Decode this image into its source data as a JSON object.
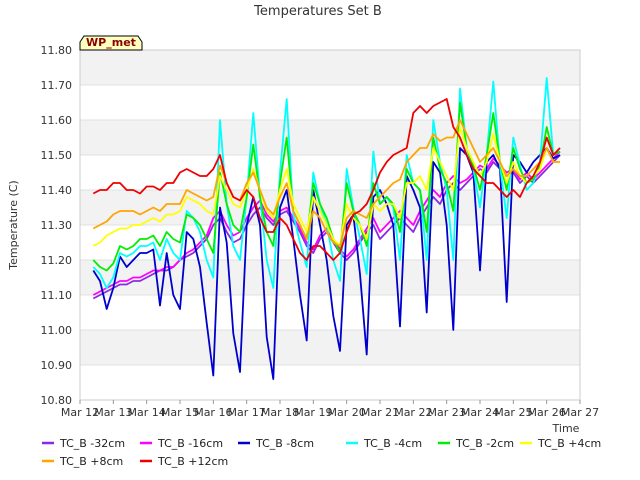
{
  "chart_data": {
    "type": "line",
    "title": "Temperatures Set B",
    "xlabel": "Time",
    "ylabel": "Temperature (C)",
    "badge": "WP_met",
    "xlim": [
      12,
      27
    ],
    "ylim": [
      10.8,
      11.8
    ],
    "grid": "horizontal bands",
    "legend_position": "bottom",
    "x_ticks": [
      "Mar 12",
      "Mar 13",
      "Mar 14",
      "Mar 15",
      "Mar 16",
      "Mar 17",
      "Mar 18",
      "Mar 19",
      "Mar 20",
      "Mar 21",
      "Mar 22",
      "Mar 23",
      "Mar 24",
      "Mar 25",
      "Mar 26",
      "Mar 27"
    ],
    "y_ticks": [
      "10.80",
      "10.90",
      "11.00",
      "11.10",
      "11.20",
      "11.30",
      "11.40",
      "11.50",
      "11.60",
      "11.70",
      "11.80"
    ],
    "x": [
      12.4,
      12.6,
      12.8,
      13.0,
      13.2,
      13.4,
      13.6,
      13.8,
      14.0,
      14.2,
      14.4,
      14.6,
      14.8,
      15.0,
      15.2,
      15.4,
      15.6,
      15.8,
      16.0,
      16.2,
      16.4,
      16.6,
      16.8,
      17.0,
      17.2,
      17.4,
      17.6,
      17.8,
      18.0,
      18.2,
      18.4,
      18.6,
      18.8,
      19.0,
      19.2,
      19.4,
      19.6,
      19.8,
      20.0,
      20.2,
      20.4,
      20.6,
      20.8,
      21.0,
      21.2,
      21.4,
      21.6,
      21.8,
      22.0,
      22.2,
      22.4,
      22.6,
      22.8,
      23.0,
      23.2,
      23.4,
      23.6,
      23.8,
      24.0,
      24.2,
      24.4,
      24.6,
      24.8,
      25.0,
      25.2,
      25.4,
      25.6,
      25.8,
      26.0,
      26.2,
      26.4
    ],
    "series": [
      {
        "name": "TC_B -32cm",
        "color": "#8a2be2",
        "values": [
          11.09,
          11.1,
          11.11,
          11.12,
          11.13,
          11.13,
          11.14,
          11.14,
          11.15,
          11.16,
          11.17,
          11.17,
          11.18,
          11.2,
          11.21,
          11.22,
          11.24,
          11.26,
          11.3,
          11.32,
          11.28,
          11.25,
          11.26,
          11.3,
          11.33,
          11.35,
          11.32,
          11.3,
          11.33,
          11.34,
          11.31,
          11.28,
          11.24,
          11.22,
          11.26,
          11.28,
          11.25,
          11.22,
          11.2,
          11.22,
          11.25,
          11.28,
          11.3,
          11.26,
          11.28,
          11.3,
          11.32,
          11.3,
          11.28,
          11.32,
          11.35,
          11.38,
          11.36,
          11.4,
          11.42,
          11.4,
          11.42,
          11.44,
          11.46,
          11.45,
          11.48,
          11.46,
          11.44,
          11.45,
          11.42,
          11.44,
          11.42,
          11.44,
          11.46,
          11.48,
          11.5
        ]
      },
      {
        "name": "TC_B -16cm",
        "color": "#ff00ff",
        "values": [
          11.1,
          11.11,
          11.12,
          11.13,
          11.14,
          11.14,
          11.15,
          11.15,
          11.16,
          11.17,
          11.17,
          11.18,
          11.18,
          11.2,
          11.22,
          11.23,
          11.25,
          11.27,
          11.32,
          11.34,
          11.3,
          11.27,
          11.28,
          11.32,
          11.35,
          11.37,
          11.33,
          11.31,
          11.34,
          11.35,
          11.32,
          11.29,
          11.25,
          11.23,
          11.27,
          11.29,
          11.26,
          11.23,
          11.21,
          11.23,
          11.26,
          11.29,
          11.32,
          11.28,
          11.3,
          11.32,
          11.34,
          11.32,
          11.3,
          11.34,
          11.37,
          11.4,
          11.38,
          11.42,
          11.44,
          11.42,
          11.43,
          11.45,
          11.47,
          11.46,
          11.49,
          11.47,
          11.45,
          11.46,
          11.43,
          11.45,
          11.43,
          11.45,
          11.47,
          11.49,
          11.51
        ]
      },
      {
        "name": "TC_B -8cm",
        "color": "#0000cd",
        "values": [
          11.17,
          11.14,
          11.06,
          11.12,
          11.21,
          11.18,
          11.2,
          11.22,
          11.22,
          11.23,
          11.07,
          11.22,
          11.1,
          11.06,
          11.28,
          11.26,
          11.18,
          11.02,
          10.87,
          11.35,
          11.25,
          10.99,
          10.88,
          11.3,
          11.38,
          11.3,
          10.98,
          10.86,
          11.35,
          11.4,
          11.26,
          11.1,
          10.97,
          11.4,
          11.3,
          11.2,
          11.04,
          10.94,
          11.3,
          11.33,
          11.16,
          10.93,
          11.38,
          11.4,
          11.36,
          11.3,
          11.01,
          11.44,
          11.4,
          11.35,
          11.05,
          11.48,
          11.45,
          11.3,
          11.0,
          11.52,
          11.5,
          11.45,
          11.17,
          11.48,
          11.5,
          11.46,
          11.08,
          11.5,
          11.48,
          11.45,
          11.48,
          11.5,
          11.52,
          11.49,
          11.5
        ]
      },
      {
        "name": "TC_B -4cm",
        "color": "#00ffff",
        "values": [
          11.18,
          11.16,
          11.12,
          11.15,
          11.22,
          11.21,
          11.22,
          11.24,
          11.24,
          11.25,
          11.2,
          11.26,
          11.22,
          11.2,
          11.34,
          11.32,
          11.28,
          11.2,
          11.15,
          11.6,
          11.36,
          11.24,
          11.2,
          11.38,
          11.62,
          11.38,
          11.2,
          11.12,
          11.45,
          11.66,
          11.33,
          11.25,
          11.18,
          11.45,
          11.36,
          11.3,
          11.2,
          11.14,
          11.46,
          11.35,
          11.26,
          11.16,
          11.51,
          11.36,
          11.38,
          11.35,
          11.2,
          11.5,
          11.42,
          11.4,
          11.2,
          11.6,
          11.48,
          11.4,
          11.2,
          11.69,
          11.52,
          11.46,
          11.35,
          11.5,
          11.71,
          11.47,
          11.32,
          11.55,
          11.47,
          11.4,
          11.42,
          11.48,
          11.72,
          11.5,
          11.52
        ]
      },
      {
        "name": "TC_B -2cm",
        "color": "#00ee00",
        "values": [
          11.2,
          11.18,
          11.17,
          11.19,
          11.24,
          11.23,
          11.24,
          11.26,
          11.26,
          11.27,
          11.24,
          11.28,
          11.26,
          11.25,
          11.33,
          11.32,
          11.3,
          11.26,
          11.22,
          11.45,
          11.36,
          11.3,
          11.28,
          11.38,
          11.53,
          11.38,
          11.28,
          11.24,
          11.42,
          11.55,
          11.34,
          11.3,
          11.26,
          11.42,
          11.36,
          11.32,
          11.26,
          11.22,
          11.42,
          11.34,
          11.3,
          11.24,
          11.42,
          11.36,
          11.38,
          11.36,
          11.28,
          11.46,
          11.42,
          11.4,
          11.28,
          11.55,
          11.46,
          11.42,
          11.34,
          11.65,
          11.52,
          11.47,
          11.4,
          11.5,
          11.62,
          11.48,
          11.4,
          11.52,
          11.46,
          11.42,
          11.43,
          11.47,
          11.58,
          11.5,
          11.51
        ]
      },
      {
        "name": "TC_B +4cm",
        "color": "#ffff00",
        "values": [
          11.24,
          11.25,
          11.27,
          11.28,
          11.29,
          11.29,
          11.3,
          11.3,
          11.31,
          11.32,
          11.31,
          11.33,
          11.33,
          11.34,
          11.38,
          11.37,
          11.36,
          11.34,
          11.33,
          11.44,
          11.4,
          11.36,
          11.35,
          11.4,
          11.46,
          11.4,
          11.34,
          11.32,
          11.4,
          11.46,
          11.36,
          11.32,
          11.28,
          11.38,
          11.34,
          11.3,
          11.26,
          11.24,
          11.36,
          11.32,
          11.3,
          11.26,
          11.36,
          11.34,
          11.36,
          11.36,
          11.32,
          11.42,
          11.42,
          11.44,
          11.4,
          11.52,
          11.48,
          11.44,
          11.4,
          11.58,
          11.52,
          11.48,
          11.44,
          11.48,
          11.56,
          11.48,
          11.42,
          11.48,
          11.44,
          11.42,
          11.44,
          11.46,
          11.52,
          11.48,
          11.48
        ]
      },
      {
        "name": "TC_B +8cm",
        "color": "#ffa500",
        "values": [
          11.29,
          11.3,
          11.31,
          11.33,
          11.34,
          11.34,
          11.34,
          11.33,
          11.34,
          11.35,
          11.34,
          11.36,
          11.36,
          11.36,
          11.4,
          11.39,
          11.38,
          11.37,
          11.38,
          11.47,
          11.42,
          11.38,
          11.37,
          11.42,
          11.45,
          11.4,
          11.35,
          11.33,
          11.38,
          11.42,
          11.34,
          11.3,
          11.26,
          11.34,
          11.32,
          11.28,
          11.25,
          11.24,
          11.32,
          11.34,
          11.33,
          11.32,
          11.36,
          11.38,
          11.4,
          11.42,
          11.43,
          11.48,
          11.5,
          11.52,
          11.52,
          11.56,
          11.54,
          11.55,
          11.55,
          11.6,
          11.56,
          11.52,
          11.48,
          11.5,
          11.52,
          11.48,
          11.44,
          11.46,
          11.44,
          11.44,
          11.46,
          11.48,
          11.52,
          11.48,
          11.48
        ]
      },
      {
        "name": "TC_B +12cm",
        "color": "#ee0000",
        "values": [
          11.39,
          11.4,
          11.4,
          11.42,
          11.42,
          11.4,
          11.4,
          11.39,
          11.41,
          11.41,
          11.4,
          11.42,
          11.42,
          11.45,
          11.46,
          11.45,
          11.44,
          11.44,
          11.46,
          11.5,
          11.42,
          11.38,
          11.37,
          11.4,
          11.38,
          11.32,
          11.28,
          11.28,
          11.32,
          11.3,
          11.26,
          11.22,
          11.2,
          11.24,
          11.24,
          11.22,
          11.2,
          11.22,
          11.28,
          11.33,
          11.34,
          11.36,
          11.4,
          11.45,
          11.48,
          11.5,
          11.51,
          11.52,
          11.62,
          11.64,
          11.62,
          11.64,
          11.65,
          11.66,
          11.58,
          11.55,
          11.5,
          11.46,
          11.44,
          11.42,
          11.42,
          11.4,
          11.38,
          11.4,
          11.38,
          11.42,
          11.44,
          11.48,
          11.55,
          11.5,
          11.52
        ]
      }
    ]
  }
}
